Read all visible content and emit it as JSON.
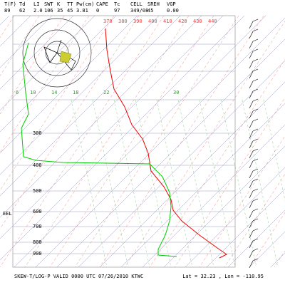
{
  "header": {
    "labels": [
      "T(F)",
      "Td",
      "LI",
      "SWT",
      "K",
      "TT",
      "Pw(cm)",
      "CAPE",
      "Tc",
      "CELL",
      "SREH",
      "VGP"
    ],
    "values": [
      "89",
      "62",
      "2.0",
      "106",
      "35",
      "45",
      "3.81",
      "0",
      "97",
      "349/08",
      "45",
      "0.00"
    ]
  },
  "theta_labels": [
    "370",
    "380",
    "390",
    "400",
    "410",
    "420",
    "430",
    "440"
  ],
  "temperature_labels": [
    "6",
    "10",
    "14",
    "18",
    "22",
    "30"
  ],
  "pressure_labels": [
    "300",
    "400",
    "500",
    "600",
    "700",
    "800",
    "900"
  ],
  "el_label": "EEL",
  "footer": {
    "title": "SKEW-T/LOG-P VALID 0000 UTC 07/26/2010   KTWC",
    "location": "Lat =     32.23 , Lon =   -110.95"
  }
}
